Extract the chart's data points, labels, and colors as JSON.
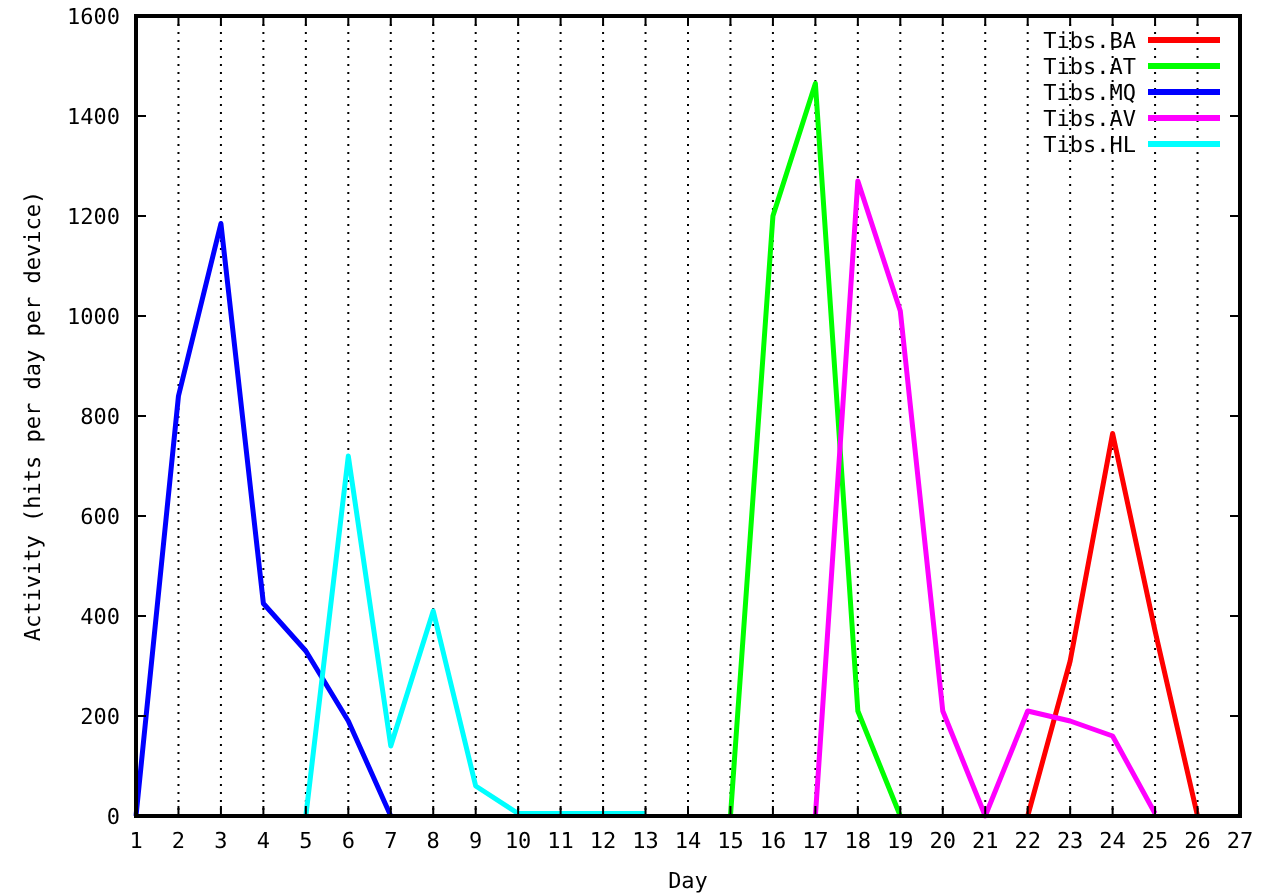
{
  "chart_data": {
    "type": "line",
    "xlabel": "Day",
    "ylabel": "Activity (hits per day per device)",
    "x": [
      1,
      2,
      3,
      4,
      5,
      6,
      7,
      8,
      9,
      10,
      11,
      12,
      13,
      14,
      15,
      16,
      17,
      18,
      19,
      20,
      21,
      22,
      23,
      24,
      25,
      26
    ],
    "series": [
      {
        "name": "Tibs.BA",
        "color": "#ff0000",
        "values": [
          null,
          null,
          null,
          null,
          null,
          null,
          null,
          null,
          null,
          null,
          null,
          null,
          null,
          null,
          null,
          null,
          null,
          null,
          null,
          null,
          null,
          0,
          310,
          765,
          370,
          0
        ]
      },
      {
        "name": "Tibs.AT",
        "color": "#00ff00",
        "values": [
          null,
          null,
          null,
          null,
          null,
          null,
          null,
          null,
          null,
          null,
          null,
          null,
          null,
          null,
          0,
          1200,
          1465,
          210,
          0,
          null,
          null,
          null,
          null,
          null,
          null,
          null
        ]
      },
      {
        "name": "Tibs.MQ",
        "color": "#0000ff",
        "values": [
          0,
          840,
          1185,
          425,
          330,
          190,
          0,
          null,
          null,
          null,
          null,
          null,
          null,
          null,
          null,
          null,
          null,
          null,
          null,
          null,
          null,
          null,
          null,
          null,
          null,
          null
        ]
      },
      {
        "name": "Tibs.AV",
        "color": "#ff00ff",
        "values": [
          null,
          null,
          null,
          null,
          null,
          null,
          null,
          null,
          null,
          null,
          null,
          null,
          null,
          null,
          null,
          null,
          0,
          1270,
          1010,
          210,
          0,
          210,
          190,
          160,
          5,
          null
        ]
      },
      {
        "name": "Tibs.HL",
        "color": "#00ffff",
        "values": [
          null,
          null,
          null,
          null,
          0,
          720,
          140,
          410,
          60,
          5,
          5,
          5,
          5,
          null,
          null,
          null,
          null,
          null,
          null,
          null,
          null,
          null,
          null,
          null,
          null,
          null
        ]
      }
    ],
    "xlim": [
      1,
      27
    ],
    "xticks": [
      1,
      2,
      3,
      4,
      5,
      6,
      7,
      8,
      9,
      10,
      11,
      12,
      13,
      14,
      15,
      16,
      17,
      18,
      19,
      20,
      21,
      22,
      23,
      24,
      25,
      26,
      27
    ],
    "ylim": [
      0,
      1600
    ],
    "yticks": [
      0,
      200,
      400,
      600,
      800,
      1000,
      1200,
      1400,
      1600
    ],
    "grid": "x",
    "legend": "top right",
    "marker": "none",
    "line_style": "solid"
  }
}
